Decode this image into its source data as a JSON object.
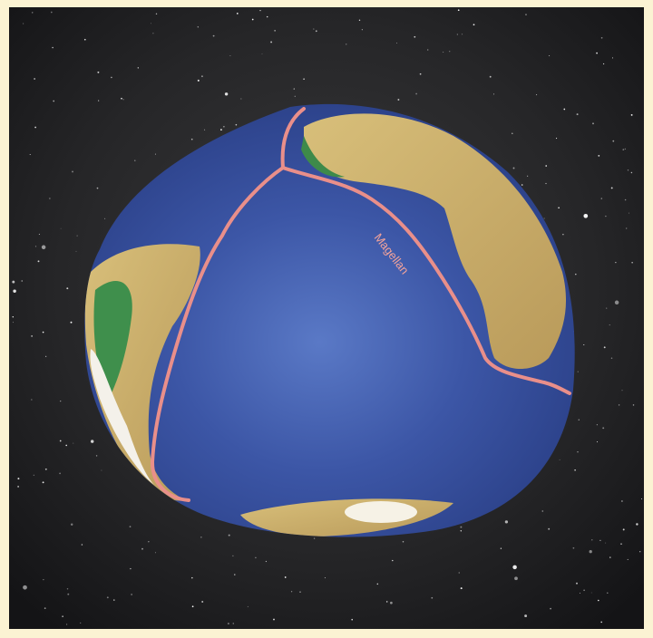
{
  "route": {
    "label": "Magellan"
  }
}
